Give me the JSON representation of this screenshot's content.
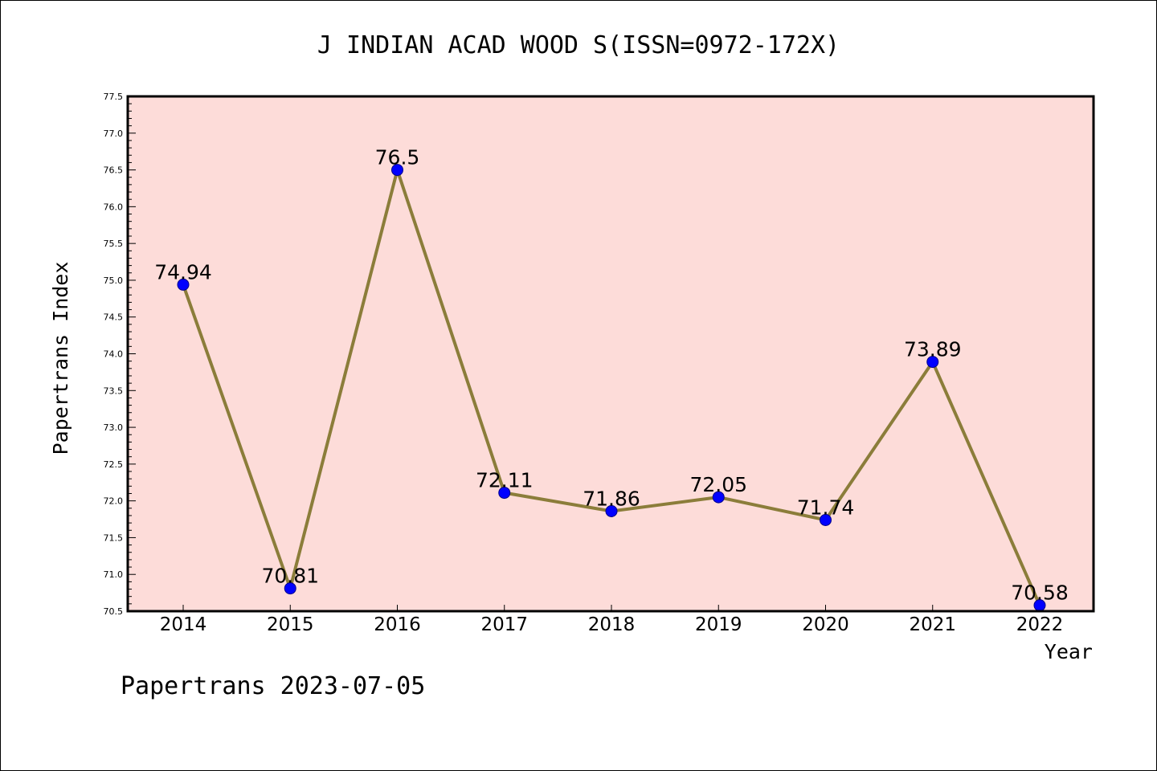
{
  "chart_data": {
    "type": "line",
    "title": "J INDIAN ACAD WOOD S(ISSN=0972-172X)",
    "xlabel": "Year",
    "ylabel": "Papertrans Index",
    "categories": [
      "2014",
      "2015",
      "2016",
      "2017",
      "2018",
      "2019",
      "2020",
      "2021",
      "2022"
    ],
    "series": [
      {
        "values": [
          74.94,
          70.81,
          76.5,
          72.11,
          71.86,
          72.05,
          71.74,
          73.89,
          70.58
        ],
        "labels": [
          "74.94",
          "70.81",
          "76.5",
          "72.11",
          "71.86",
          "72.05",
          "71.74",
          "73.89",
          "70.58"
        ]
      }
    ],
    "ylim": [
      70.5,
      77.5
    ],
    "yticks": [
      "70.5",
      "71.0",
      "71.5",
      "72.0",
      "72.5",
      "73.0",
      "73.5",
      "74.0",
      "74.5",
      "75.0",
      "75.5",
      "76.0",
      "76.5",
      "77.0",
      "77.5"
    ],
    "grid": false,
    "colors": {
      "plot_background": "#fddcd9",
      "line": "#8b7d3a",
      "marker": "#0000ff"
    }
  },
  "footer": "Papertrans 2023-07-05"
}
